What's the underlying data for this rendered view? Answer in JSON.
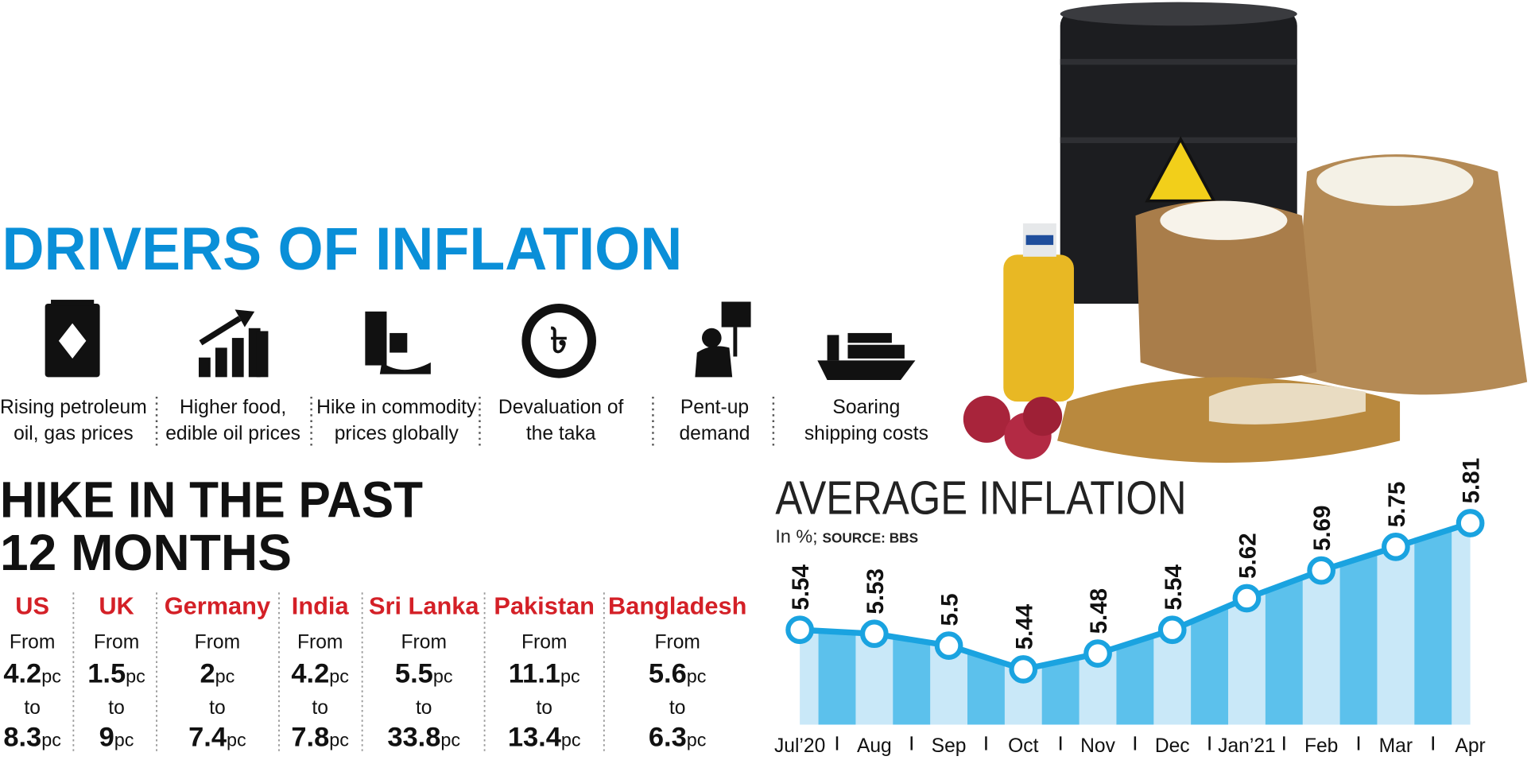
{
  "drivers": {
    "title": "DRIVERS OF INFLATION",
    "items": [
      {
        "label_lines": [
          "Rising petroleum",
          "oil, gas prices"
        ]
      },
      {
        "label_lines": [
          "Higher food,",
          "edible oil prices"
        ]
      },
      {
        "label_lines": [
          "Hike in commodity",
          "prices globally"
        ]
      },
      {
        "label_lines": [
          "Devaluation of",
          "the taka"
        ]
      },
      {
        "label_lines": [
          "Pent-up",
          "demand"
        ]
      },
      {
        "label_lines": [
          "Soaring",
          "shipping costs"
        ]
      }
    ]
  },
  "hike": {
    "title_lines": [
      "HIKE IN THE PAST",
      "12 MONTHS"
    ],
    "from_label": "From",
    "to_label": "to",
    "unit": "pc",
    "countries": [
      {
        "name": "US",
        "from": 4.2,
        "to": 8.3
      },
      {
        "name": "UK",
        "from": 1.5,
        "to": 9
      },
      {
        "name": "Germany",
        "from": 2,
        "to": 7.4
      },
      {
        "name": "India",
        "from": 4.2,
        "to": 7.8
      },
      {
        "name": "Sri Lanka",
        "from": 5.5,
        "to": 33.8
      },
      {
        "name": "Pakistan",
        "from": 11.1,
        "to": 13.4
      },
      {
        "name": "Bangladesh",
        "from": 5.6,
        "to": 6.3
      }
    ]
  },
  "chart_data": {
    "type": "line",
    "title": "AVERAGE INFLATION",
    "subtitle": "In %;",
    "source": "SOURCE: BBS",
    "categories": [
      "Jul’20",
      "Aug",
      "Sep",
      "Oct",
      "Nov",
      "Dec",
      "Jan’21",
      "Feb",
      "Mar",
      "Apr"
    ],
    "values": [
      5.54,
      5.53,
      5.5,
      5.44,
      5.48,
      5.54,
      5.62,
      5.69,
      5.75,
      5.81
    ],
    "color": "#1aa3e0",
    "ylim": [
      5.3,
      5.85
    ]
  }
}
